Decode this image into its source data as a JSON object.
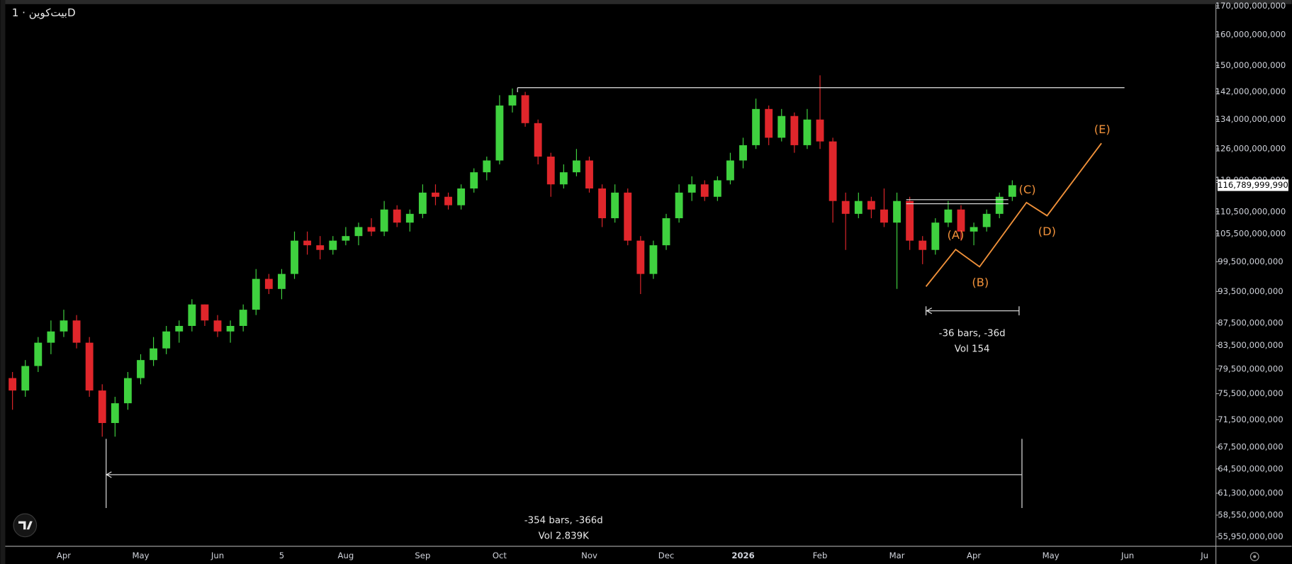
{
  "chart_data": {
    "type": "candlestick",
    "title": "بیت‌کوین · 1D",
    "log_scale": true,
    "grid": false,
    "up_color": "#3fd13f",
    "down_color": "#e0262b",
    "categories": [
      null,
      null,
      null,
      null,
      "Apr",
      null,
      null,
      null,
      null,
      null,
      "May",
      null,
      null,
      null,
      null,
      null,
      "Jun",
      null,
      null,
      null,
      null,
      "5",
      null,
      null,
      null,
      null,
      "Aug",
      null,
      null,
      null,
      null,
      null,
      "Sep",
      null,
      null,
      null,
      null,
      null,
      "Oct",
      null,
      null,
      null,
      null,
      null,
      null,
      "Nov",
      null,
      null,
      null,
      null,
      null,
      "Dec",
      null,
      null,
      null,
      null,
      null,
      "2026",
      null,
      null,
      null,
      null,
      null,
      "Feb",
      null,
      null,
      null,
      null,
      null,
      "Mar",
      null,
      null,
      null,
      null,
      null,
      "Apr",
      null,
      null,
      null,
      null,
      null,
      "May",
      null,
      null,
      null,
      null,
      null,
      "Jun",
      null,
      null,
      null,
      null,
      null,
      "Ju"
    ],
    "open": [
      78000000000,
      76000000000,
      80000000000,
      84000000000,
      86000000000,
      88000000000,
      84000000000,
      76000000000,
      71000000000,
      74000000000,
      78000000000,
      81000000000,
      83000000000,
      86000000000,
      87000000000,
      91000000000,
      88000000000,
      86000000000,
      87000000000,
      90000000000,
      96000000000,
      94000000000,
      97000000000,
      104000000000,
      103000000000,
      102000000000,
      104000000000,
      105000000000,
      107000000000,
      106000000000,
      111000000000,
      108000000000,
      110000000000,
      115000000000,
      114000000000,
      112000000000,
      116000000000,
      120000000000,
      123000000000,
      138000000000,
      141000000000,
      133000000000,
      124000000000,
      117000000000,
      120000000000,
      123000000000,
      116000000000,
      109000000000,
      115000000000,
      104000000000,
      97000000000,
      103000000000,
      109000000000,
      115000000000,
      117000000000,
      114000000000,
      118000000000,
      123000000000,
      127000000000,
      137000000000,
      129000000000,
      135000000000,
      127000000000,
      134000000000,
      128000000000,
      113000000000,
      110000000000,
      113000000000,
      111000000000,
      108000000000,
      113000000000,
      104000000000,
      102000000000,
      108000000000,
      111000000000,
      106000000000,
      107000000000,
      110000000000,
      114000000000,
      null,
      null,
      null,
      null,
      null,
      null,
      null,
      null,
      null,
      null,
      null,
      null,
      null,
      null,
      null
    ],
    "high": [
      79000000000,
      81000000000,
      85000000000,
      88000000000,
      90000000000,
      89000000000,
      85000000000,
      77000000000,
      75000000000,
      79000000000,
      82000000000,
      85000000000,
      87000000000,
      88000000000,
      92000000000,
      91000000000,
      89000000000,
      88000000000,
      91000000000,
      98000000000,
      97000000000,
      98000000000,
      106000000000,
      106000000000,
      105000000000,
      105000000000,
      107000000000,
      108000000000,
      109000000000,
      113000000000,
      112000000000,
      111000000000,
      117000000000,
      117000000000,
      115000000000,
      117000000000,
      121000000000,
      124000000000,
      141000000000,
      143000000000,
      142000000000,
      134000000000,
      125000000000,
      122000000000,
      126000000000,
      124000000000,
      117000000000,
      117000000000,
      116000000000,
      105000000000,
      104000000000,
      110000000000,
      117000000000,
      119000000000,
      118000000000,
      119000000000,
      125000000000,
      129000000000,
      140000000000,
      138000000000,
      137000000000,
      136000000000,
      137000000000,
      147000000000,
      129000000000,
      115000000000,
      115000000000,
      114000000000,
      116000000000,
      115000000000,
      114000000000,
      105000000000,
      109000000000,
      113000000000,
      112000000000,
      108000000000,
      111000000000,
      115000000000,
      118000000000,
      null,
      null,
      null,
      null,
      null,
      null,
      null,
      null,
      null,
      null,
      null,
      null,
      null,
      null,
      null
    ],
    "low": [
      73000000000,
      75000000000,
      79000000000,
      82000000000,
      85000000000,
      83000000000,
      75000000000,
      69000000000,
      69000000000,
      73000000000,
      77000000000,
      80000000000,
      82000000000,
      84000000000,
      86000000000,
      87000000000,
      85000000000,
      84000000000,
      86000000000,
      89000000000,
      93000000000,
      92000000000,
      96000000000,
      101000000000,
      100000000000,
      101000000000,
      103000000000,
      103000000000,
      105000000000,
      105000000000,
      107000000000,
      106000000000,
      109000000000,
      112000000000,
      111000000000,
      111000000000,
      115000000000,
      118000000000,
      122000000000,
      136000000000,
      132000000000,
      122000000000,
      114000000000,
      116000000000,
      119000000000,
      115000000000,
      107000000000,
      108000000000,
      103000000000,
      93000000000,
      96000000000,
      102000000000,
      108000000000,
      113000000000,
      113000000000,
      113000000000,
      117000000000,
      121000000000,
      126000000000,
      127000000000,
      128000000000,
      125000000000,
      126000000000,
      126000000000,
      108000000000,
      102000000000,
      109000000000,
      109000000000,
      107000000000,
      94000000000,
      102000000000,
      99000000000,
      101000000000,
      107000000000,
      104000000000,
      103000000000,
      106000000000,
      109000000000,
      113000000000,
      null,
      null,
      null,
      null,
      null,
      null,
      null,
      null,
      null,
      null,
      null,
      null,
      null,
      null,
      null
    ],
    "close": [
      76000000000,
      80000000000,
      84000000000,
      86000000000,
      88000000000,
      84000000000,
      76000000000,
      71000000000,
      74000000000,
      78000000000,
      81000000000,
      83000000000,
      86000000000,
      87000000000,
      91000000000,
      88000000000,
      86000000000,
      87000000000,
      90000000000,
      96000000000,
      94000000000,
      97000000000,
      104000000000,
      103000000000,
      102000000000,
      104000000000,
      105000000000,
      107000000000,
      106000000000,
      111000000000,
      108000000000,
      110000000000,
      115000000000,
      114000000000,
      112000000000,
      116000000000,
      120000000000,
      123000000000,
      138000000000,
      141000000000,
      133000000000,
      124000000000,
      117000000000,
      120000000000,
      123000000000,
      116000000000,
      109000000000,
      115000000000,
      104000000000,
      97000000000,
      103000000000,
      109000000000,
      115000000000,
      117000000000,
      114000000000,
      118000000000,
      123000000000,
      127000000000,
      137000000000,
      129000000000,
      135000000000,
      127000000000,
      134000000000,
      128000000000,
      113000000000,
      110000000000,
      113000000000,
      111000000000,
      108000000000,
      113000000000,
      104000000000,
      102000000000,
      108000000000,
      111000000000,
      106000000000,
      107000000000,
      110000000000,
      114000000000,
      116789999990,
      null,
      null,
      null,
      null,
      null,
      null,
      null,
      null,
      null,
      null,
      null,
      null,
      null,
      null,
      null
    ],
    "ylim": [
      54900000000,
      172100000000
    ],
    "yticks": [
      {
        "value": 170000000000,
        "label": "170,000,000,000"
      },
      {
        "value": 160000000000,
        "label": "160,000,000,000"
      },
      {
        "value": 150000000000,
        "label": "150,000,000,000"
      },
      {
        "value": 142000000000,
        "label": "142,000,000,000"
      },
      {
        "value": 134000000000,
        "label": "134,000,000,000"
      },
      {
        "value": 126000000000,
        "label": "126,000,000,000"
      },
      {
        "value": 118000000000,
        "label": "118,000,000,000"
      },
      {
        "value": 110500000000,
        "label": "110,500,000,000"
      },
      {
        "value": 105500000000,
        "label": "105,500,000,000"
      },
      {
        "value": 99500000000,
        "label": "99,500,000,000"
      },
      {
        "value": 93500000000,
        "label": "93,500,000,000"
      },
      {
        "value": 87500000000,
        "label": "87,500,000,000"
      },
      {
        "value": 83500000000,
        "label": "83,500,000,000"
      },
      {
        "value": 79500000000,
        "label": "79,500,000,000"
      },
      {
        "value": 75500000000,
        "label": "75,500,000,000"
      },
      {
        "value": 71500000000,
        "label": "71,500,000,000"
      },
      {
        "value": 67500000000,
        "label": "67,500,000,000"
      },
      {
        "value": 64500000000,
        "label": "64,500,000,000"
      },
      {
        "value": 61300000000,
        "label": "61,300,000,000"
      },
      {
        "value": 58550000000,
        "label": "58,550,000,000"
      },
      {
        "value": 55950000000,
        "label": "55,950,000,000"
      }
    ],
    "last_price": {
      "value": 116789999990,
      "label": "116,789,999,990"
    },
    "annotations": {
      "waves": [
        "(A)",
        "(B)",
        "(C)",
        "(D)",
        "(E)"
      ],
      "measure_short": [
        "-36 bars, -36d",
        "Vol 154"
      ],
      "measure_long": [
        "-354 bars, -366d",
        "Vol 2.839K"
      ]
    }
  }
}
